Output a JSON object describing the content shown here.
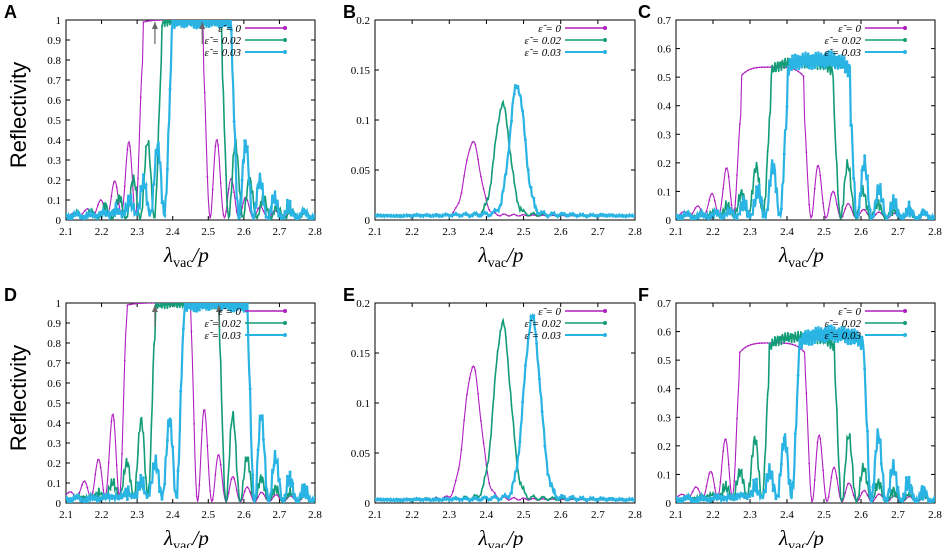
{
  "figure": {
    "y_axis_label": "Reflectivity",
    "x_axis_label": "λvac/p",
    "x_label_main": "λ",
    "x_label_sub": "vac",
    "x_label_tail": "/p"
  },
  "colors": {
    "eps0": "#b01ec0",
    "eps002": "#129c78",
    "eps003": "#2ab4e4",
    "arrow": "#666666"
  },
  "chart_data": [
    {
      "panel": "A",
      "type": "line",
      "xlim": [
        2.1,
        2.8
      ],
      "ylim": [
        0,
        1
      ],
      "x_ticks": [
        "2.1",
        "2.2",
        "2.3",
        "2.4",
        "2.5",
        "2.6",
        "2.7",
        "2.8"
      ],
      "y_ticks": [
        "0",
        "0.1",
        "0.2",
        "0.3",
        "0.4",
        "0.5",
        "0.6",
        "0.7",
        "0.8",
        "0.9",
        "1"
      ],
      "legend": [
        "ε̃ = 0",
        "ε̃ = 0.02",
        "ε̃ = 0.03"
      ],
      "series": [
        {
          "name": "ε̃ = 0",
          "center": 2.4,
          "halfwidth": 0.085,
          "peak": 1.0,
          "period": 0.04,
          "side_amp": 0.78,
          "floor": 0.03,
          "jag": 0
        },
        {
          "name": "ε̃ = 0.02",
          "center": 2.453,
          "halfwidth": 0.085,
          "peak": 1.0,
          "period": 0.04,
          "side_amp": 0.74,
          "floor": 0.03,
          "jag": 0.025
        },
        {
          "name": "ε̃ = 0.03",
          "center": 2.481,
          "halfwidth": 0.085,
          "peak": 1.0,
          "period": 0.04,
          "side_amp": 0.74,
          "floor": 0.03,
          "jag": 0.04
        }
      ],
      "arrows": [
        2.35,
        2.483
      ]
    },
    {
      "panel": "B",
      "type": "line",
      "xlim": [
        2.1,
        2.8
      ],
      "ylim": [
        0,
        0.2
      ],
      "x_ticks": [
        "2.1",
        "2.2",
        "2.3",
        "2.4",
        "2.5",
        "2.6",
        "2.7",
        "2.8"
      ],
      "y_ticks": [
        "0",
        "0.05",
        "0.1",
        "0.15",
        "0.2"
      ],
      "legend": [
        "ε̃ = 0",
        "ε̃ = 0.02",
        "ε̃ = 0.03"
      ],
      "series": [
        {
          "name": "ε̃ = 0",
          "center": 2.363,
          "halfwidth": 0.02,
          "peak": 0.072,
          "period": 0.04,
          "side_amp": 0.004,
          "floor": 0.004,
          "jag": 0
        },
        {
          "name": "ε̃ = 0.02",
          "center": 2.443,
          "halfwidth": 0.02,
          "peak": 0.108,
          "period": 0.04,
          "side_amp": 0.006,
          "floor": 0.004,
          "jag": 0.002
        },
        {
          "name": "ε̃ = 0.03",
          "center": 2.483,
          "halfwidth": 0.02,
          "peak": 0.128,
          "period": 0.04,
          "side_amp": 0.007,
          "floor": 0.004,
          "jag": 0.003
        }
      ],
      "arrows": []
    },
    {
      "panel": "C",
      "type": "line",
      "xlim": [
        2.1,
        2.8
      ],
      "ylim": [
        0,
        0.7
      ],
      "x_ticks": [
        "2.1",
        "2.2",
        "2.3",
        "2.4",
        "2.5",
        "2.6",
        "2.7",
        "2.8"
      ],
      "y_ticks": [
        "0",
        "0.1",
        "0.2",
        "0.3",
        "0.4",
        "0.5",
        "0.6",
        "0.7"
      ],
      "legend": [
        "ε̃ = 0",
        "ε̃ = 0.02",
        "ε̃ = 0.03"
      ],
      "series": [
        {
          "name": "ε̃ = 0",
          "center": 2.36,
          "halfwidth": 0.085,
          "peak": 0.535,
          "period": 0.04,
          "side_amp": 0.36,
          "floor": 0.02,
          "jag": 0
        },
        {
          "name": "ε̃ = 0.02",
          "center": 2.44,
          "halfwidth": 0.085,
          "peak": 0.55,
          "period": 0.04,
          "side_amp": 0.37,
          "floor": 0.02,
          "jag": 0.02
        },
        {
          "name": "ε̃ = 0.03",
          "center": 2.485,
          "halfwidth": 0.085,
          "peak": 0.56,
          "period": 0.04,
          "side_amp": 0.37,
          "floor": 0.02,
          "jag": 0.03
        }
      ],
      "arrows": []
    },
    {
      "panel": "D",
      "type": "line",
      "xlim": [
        2.1,
        2.8
      ],
      "ylim": [
        0,
        1
      ],
      "x_ticks": [
        "2.1",
        "2.2",
        "2.3",
        "2.4",
        "2.5",
        "2.6",
        "2.7",
        "2.8"
      ],
      "y_ticks": [
        "0",
        "0.1",
        "0.2",
        "0.3",
        "0.4",
        "0.5",
        "0.6",
        "0.7",
        "0.8",
        "0.9",
        "1"
      ],
      "legend": [
        "ε̃ = 0",
        "ε̃ = 0.02",
        "ε̃ = 0.03"
      ],
      "series": [
        {
          "name": "ε̃ = 0",
          "center": 2.36,
          "halfwidth": 0.09,
          "peak": 1.0,
          "period": 0.04,
          "side_amp": 0.9,
          "floor": 0.03,
          "jag": 0
        },
        {
          "name": "ε̃ = 0.02",
          "center": 2.44,
          "halfwidth": 0.09,
          "peak": 1.0,
          "period": 0.04,
          "side_amp": 0.84,
          "floor": 0.03,
          "jag": 0.025
        },
        {
          "name": "ε̃ = 0.03",
          "center": 2.52,
          "halfwidth": 0.09,
          "peak": 1.0,
          "period": 0.04,
          "side_amp": 0.84,
          "floor": 0.03,
          "jag": 0.04
        }
      ],
      "arrows": [
        2.35,
        2.53
      ]
    },
    {
      "panel": "E",
      "type": "line",
      "xlim": [
        2.1,
        2.8
      ],
      "ylim": [
        0,
        0.2
      ],
      "x_ticks": [
        "2.1",
        "2.2",
        "2.3",
        "2.4",
        "2.5",
        "2.6",
        "2.7",
        "2.8"
      ],
      "y_ticks": [
        "0",
        "0.05",
        "0.1",
        "0.15",
        "0.2"
      ],
      "legend": [
        "ε̃ = 0",
        "ε̃ = 0.02",
        "ε̃ = 0.03"
      ],
      "series": [
        {
          "name": "ε̃ = 0",
          "center": 2.363,
          "halfwidth": 0.022,
          "peak": 0.13,
          "period": 0.04,
          "side_amp": 0.006,
          "floor": 0.003,
          "jag": 0
        },
        {
          "name": "ε̃ = 0.02",
          "center": 2.443,
          "halfwidth": 0.022,
          "peak": 0.172,
          "period": 0.04,
          "side_amp": 0.008,
          "floor": 0.003,
          "jag": 0.002
        },
        {
          "name": "ε̃ = 0.03",
          "center": 2.523,
          "halfwidth": 0.022,
          "peak": 0.178,
          "period": 0.04,
          "side_amp": 0.008,
          "floor": 0.003,
          "jag": 0.003
        }
      ],
      "arrows": []
    },
    {
      "panel": "F",
      "type": "line",
      "xlim": [
        2.1,
        2.8
      ],
      "ylim": [
        0,
        0.7
      ],
      "x_ticks": [
        "2.1",
        "2.2",
        "2.3",
        "2.4",
        "2.5",
        "2.6",
        "2.7",
        "2.8"
      ],
      "y_ticks": [
        "0",
        "0.1",
        "0.2",
        "0.3",
        "0.4",
        "0.5",
        "0.6",
        "0.7"
      ],
      "legend": [
        "ε̃ = 0",
        "ε̃ = 0.02",
        "ε̃ = 0.03"
      ],
      "series": [
        {
          "name": "ε̃ = 0",
          "center": 2.36,
          "halfwidth": 0.088,
          "peak": 0.56,
          "period": 0.04,
          "side_amp": 0.45,
          "floor": 0.02,
          "jag": 0
        },
        {
          "name": "ε̃ = 0.02",
          "center": 2.44,
          "halfwidth": 0.088,
          "peak": 0.58,
          "period": 0.04,
          "side_amp": 0.45,
          "floor": 0.02,
          "jag": 0.02
        },
        {
          "name": "ε̃ = 0.03",
          "center": 2.52,
          "halfwidth": 0.088,
          "peak": 0.59,
          "period": 0.04,
          "side_amp": 0.45,
          "floor": 0.02,
          "jag": 0.03
        }
      ],
      "arrows": []
    }
  ]
}
